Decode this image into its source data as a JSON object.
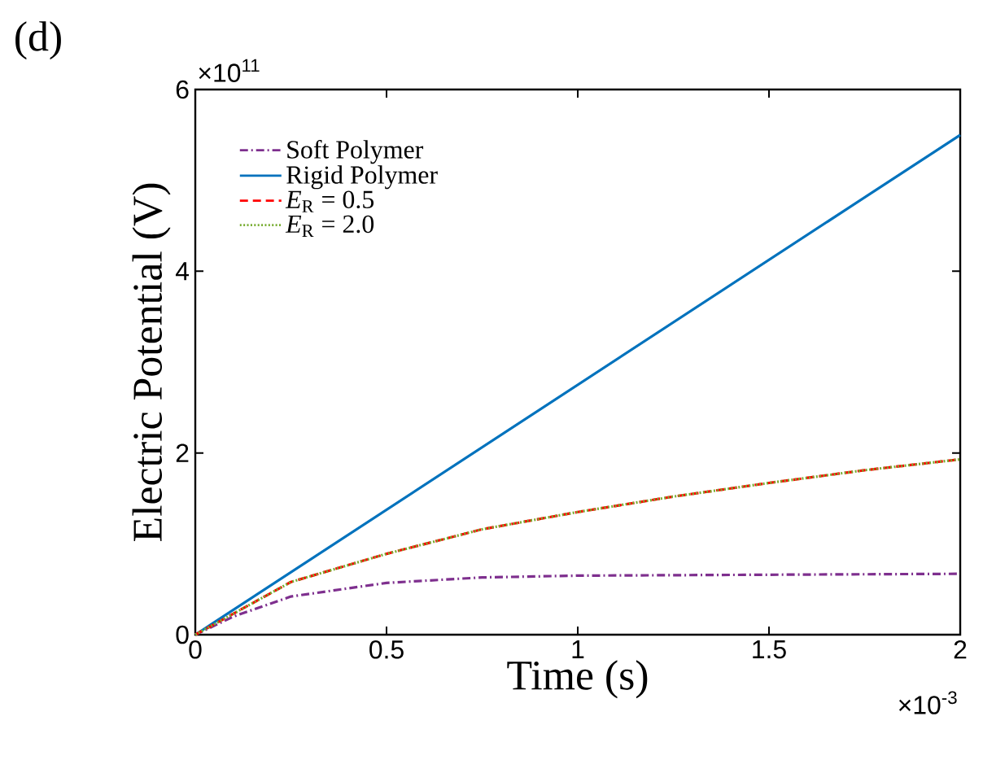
{
  "chart_data": {
    "type": "line",
    "xlabel": "Time (s)",
    "ylabel": "Electric Potential (V)",
    "annotations": [
      "(d)",
      "×10$^{11}$",
      "×10$^{-3}$"
    ],
    "xlim": [
      0,
      2
    ],
    "ylim": [
      0,
      6
    ],
    "xticks": [
      0,
      0.5,
      1,
      1.5,
      2
    ],
    "yticks": [
      0,
      2,
      4,
      6
    ],
    "grid": false,
    "legend": "top left",
    "series": [
      {
        "name": "Soft Polymer",
        "color": "#7e2f8e",
        "line_style": "dashdot",
        "x": [
          0,
          0.1,
          0.25,
          0.5,
          0.75,
          1,
          1.5,
          2
        ],
        "values": [
          0,
          0.2,
          0.42,
          0.57,
          0.63,
          0.65,
          0.66,
          0.67
        ]
      },
      {
        "name": "Rigid Polymer",
        "color": "#0072bd",
        "line_style": "solid",
        "x": [
          0,
          2
        ],
        "values": [
          0,
          5.5
        ]
      },
      {
        "name": "*E*$_{R}$ = 0.5",
        "color": "#ff0000",
        "line_style": "dashed",
        "x": [
          0,
          0.25,
          0.5,
          0.75,
          1,
          1.25,
          1.5,
          1.75,
          2
        ],
        "values": [
          0,
          0.58,
          0.89,
          1.16,
          1.35,
          1.52,
          1.67,
          1.81,
          1.93
        ]
      },
      {
        "name": "*E*$_{R}$ = 2.0",
        "color": "#77ac30",
        "line_style": "dotted",
        "x": [
          0,
          0.25,
          0.5,
          0.75,
          1,
          1.25,
          1.5,
          1.75,
          2
        ],
        "values": [
          0,
          0.58,
          0.89,
          1.16,
          1.35,
          1.52,
          1.67,
          1.81,
          1.93
        ]
      }
    ]
  }
}
